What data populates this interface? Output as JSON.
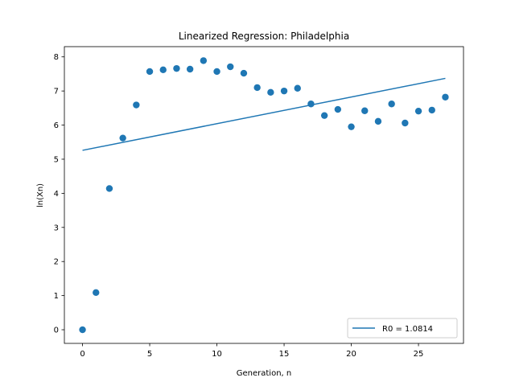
{
  "chart_data": {
    "type": "scatter",
    "title": "Linearized Regression: Philadelphia",
    "xlabel": "Generation, n",
    "ylabel": "ln(Xn)",
    "xlim": [
      -1.35,
      28.35
    ],
    "ylim": [
      -0.4,
      8.3
    ],
    "xticks": [
      0,
      5,
      10,
      15,
      20,
      25
    ],
    "yticks": [
      0,
      1,
      2,
      3,
      4,
      5,
      6,
      7,
      8
    ],
    "grid": false,
    "legend_position": "lower-right",
    "colors": {
      "series": "#1f77b4",
      "axes": "#000000"
    },
    "series": [
      {
        "kind": "scatter",
        "x": [
          0,
          1,
          2,
          3,
          4,
          5,
          6,
          7,
          8,
          9,
          10,
          11,
          12,
          13,
          14,
          15,
          16,
          17,
          18,
          19,
          20,
          21,
          22,
          23,
          24,
          25,
          26,
          27
        ],
        "y": [
          0.0,
          1.09,
          4.14,
          5.62,
          6.59,
          7.57,
          7.62,
          7.66,
          7.64,
          7.89,
          7.57,
          7.71,
          7.52,
          7.1,
          6.96,
          7.0,
          7.08,
          6.62,
          6.28,
          6.46,
          5.95,
          6.42,
          6.11,
          6.62,
          6.06,
          6.41,
          6.44,
          6.82
        ]
      },
      {
        "kind": "line",
        "name": "R0 = 1.0814",
        "x": [
          0,
          27
        ],
        "y": [
          5.26,
          7.37
        ]
      }
    ]
  }
}
